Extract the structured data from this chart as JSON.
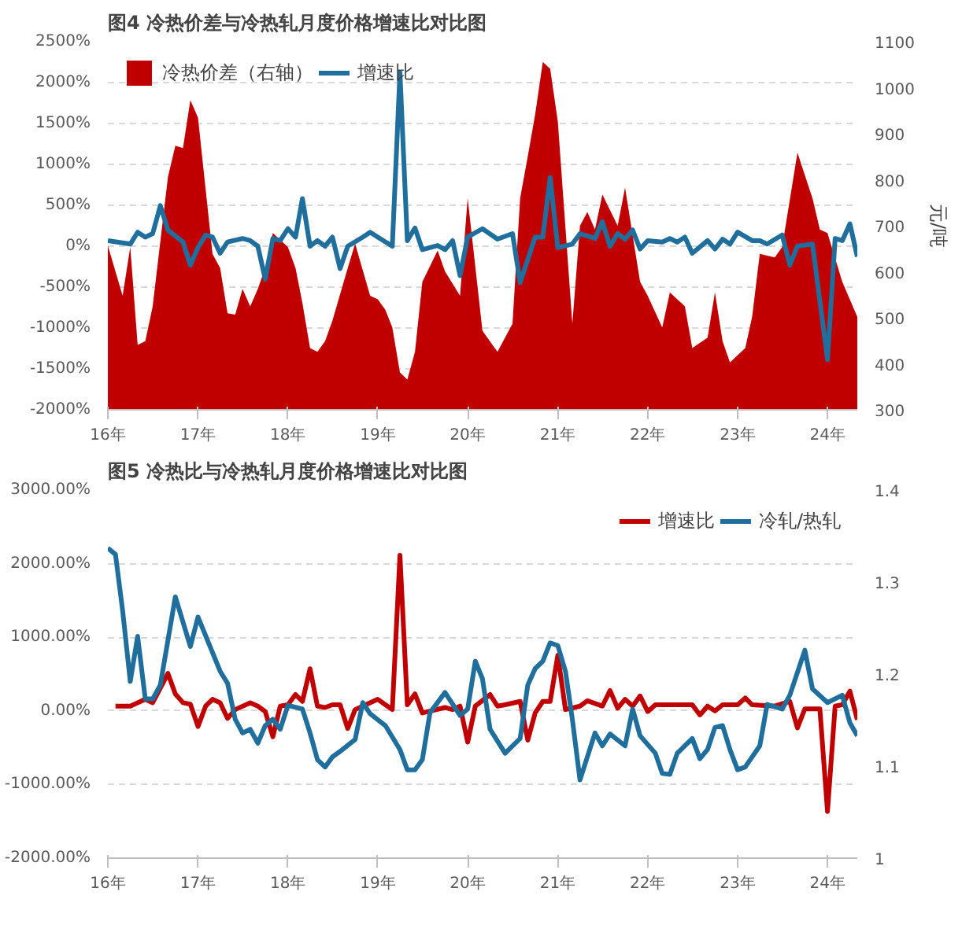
{
  "chart_data": [
    {
      "type": "line",
      "title": "图4 冷热价差与冷热轧月度价格增速比对比图",
      "y2label": "元/吨",
      "xlim": [
        "2016-01",
        "2024-05"
      ],
      "ylim": [
        -2000,
        2500
      ],
      "y2lim": [
        300,
        1100
      ],
      "xticks": [
        {
          "value": "2016-01",
          "label": "16年"
        },
        {
          "value": "2017-01",
          "label": "17年"
        },
        {
          "value": "2018-01",
          "label": "18年"
        },
        {
          "value": "2019-01",
          "label": "19年"
        },
        {
          "value": "2020-01",
          "label": "20年"
        },
        {
          "value": "2021-01",
          "label": "21年"
        },
        {
          "value": "2022-01",
          "label": "22年"
        },
        {
          "value": "2023-01",
          "label": "23年"
        },
        {
          "value": "2024-01",
          "label": "24年"
        }
      ],
      "yticks": [
        {
          "value": -2000,
          "label": "-2000%"
        },
        {
          "value": -1500,
          "label": "-1500%"
        },
        {
          "value": -1000,
          "label": "-1000%"
        },
        {
          "value": -500,
          "label": "-500%"
        },
        {
          "value": 0,
          "label": "0%"
        },
        {
          "value": 500,
          "label": "500%"
        },
        {
          "value": 1000,
          "label": "1000%"
        },
        {
          "value": 1500,
          "label": "1500%"
        },
        {
          "value": 2000,
          "label": "2000%"
        },
        {
          "value": 2500,
          "label": "2500%"
        }
      ],
      "y2ticks": [
        300,
        400,
        500,
        600,
        700,
        800,
        900,
        1000,
        1100
      ],
      "grid": "y",
      "legend": "top left",
      "series": [
        {
          "name": "冷热价差（右轴）",
          "type": "area",
          "axis": "y2",
          "color": "#c00000",
          "x": [
            "2016-01",
            "2016-03",
            "2016-04",
            "2016-05",
            "2016-06",
            "2016-07",
            "2016-09",
            "2016-10",
            "2016-11",
            "2016-12",
            "2017-01",
            "2017-03",
            "2017-04",
            "2017-05",
            "2017-06",
            "2017-07",
            "2017-08",
            "2017-09",
            "2017-10",
            "2017-11",
            "2018-01",
            "2018-02",
            "2018-03",
            "2018-04",
            "2018-05",
            "2018-06",
            "2018-07",
            "2018-09",
            "2018-10",
            "2018-12",
            "2019-01",
            "2019-02",
            "2019-03",
            "2019-04",
            "2019-05",
            "2019-06",
            "2019-07",
            "2019-09",
            "2019-10",
            "2019-12",
            "2020-01",
            "2020-03",
            "2020-05",
            "2020-07",
            "2020-08",
            "2020-09",
            "2020-10",
            "2020-11",
            "2020-12",
            "2021-01",
            "2021-03",
            "2021-04",
            "2021-05",
            "2021-06",
            "2021-07",
            "2021-09",
            "2021-10",
            "2021-12",
            "2022-01",
            "2022-03",
            "2022-04",
            "2022-06",
            "2022-07",
            "2022-09",
            "2022-10",
            "2022-11",
            "2022-12",
            "2023-02",
            "2023-03",
            "2023-04",
            "2023-06",
            "2023-07",
            "2023-09",
            "2023-11",
            "2023-12",
            "2024-01",
            "2024-03",
            "2024-05"
          ],
          "values": [
            657,
            548,
            654,
            441,
            449,
            525,
            806,
            874,
            869,
            973,
            935,
            639,
            608,
            510,
            507,
            563,
            525,
            563,
            608,
            684,
            654,
            608,
            532,
            434,
            426,
            449,
            494,
            608,
            661,
            548,
            540,
            517,
            479,
            381,
            366,
            426,
            578,
            646,
            601,
            548,
            760,
            472,
            426,
            487,
            760,
            851,
            942,
            1056,
            1041,
            927,
            487,
            700,
            730,
            692,
            768,
            700,
            783,
            578,
            548,
            479,
            555,
            525,
            434,
            457,
            555,
            449,
            403,
            434,
            502,
            639,
            631,
            654,
            859,
            760,
            692,
            684,
            578,
            502
          ]
        },
        {
          "name": "增速比",
          "type": "line",
          "color": "#1f6e9c",
          "x": [
            "2016-01",
            "2016-04",
            "2016-05",
            "2016-06",
            "2016-07",
            "2016-08",
            "2016-09",
            "2016-11",
            "2016-12",
            "2017-01",
            "2017-02",
            "2017-03",
            "2017-04",
            "2017-05",
            "2017-07",
            "2017-08",
            "2017-09",
            "2017-10",
            "2017-11",
            "2017-12",
            "2018-01",
            "2018-02",
            "2018-03",
            "2018-04",
            "2018-05",
            "2018-06",
            "2018-07",
            "2018-08",
            "2018-09",
            "2018-11",
            "2018-12",
            "2019-01",
            "2019-03",
            "2019-04",
            "2019-05",
            "2019-06",
            "2019-07",
            "2019-09",
            "2019-10",
            "2019-11",
            "2019-12",
            "2020-01",
            "2020-03",
            "2020-05",
            "2020-07",
            "2020-08",
            "2020-10",
            "2020-11",
            "2020-12",
            "2021-01",
            "2021-03",
            "2021-04",
            "2021-06",
            "2021-07",
            "2021-08",
            "2021-09",
            "2021-10",
            "2021-11",
            "2021-12",
            "2022-01",
            "2022-03",
            "2022-04",
            "2022-05",
            "2022-06",
            "2022-07",
            "2022-09",
            "2022-10",
            "2022-11",
            "2022-12",
            "2023-01",
            "2023-03",
            "2023-04",
            "2023-05",
            "2023-07",
            "2023-08",
            "2023-09",
            "2023-11",
            "2024-01",
            "2024-02",
            "2024-03",
            "2024-04",
            "2024-05"
          ],
          "values": [
            68,
            26,
            171,
            111,
            154,
            496,
            197,
            51,
            -231,
            -17,
            137,
            111,
            -86,
            51,
            94,
            68,
            0,
            -402,
            94,
            68,
            214,
            111,
            582,
            0,
            68,
            0,
            111,
            -274,
            0,
            111,
            171,
            111,
            0,
            2123,
            68,
            223,
            -43,
            9,
            -43,
            68,
            -360,
            111,
            214,
            86,
            154,
            -445,
            111,
            111,
            839,
            -17,
            26,
            154,
            94,
            300,
            0,
            154,
            86,
            197,
            -34,
            68,
            51,
            94,
            51,
            111,
            -86,
            68,
            -34,
            86,
            26,
            171,
            68,
            68,
            26,
            137,
            -231,
            0,
            26,
            -1387,
            94,
            68,
            274,
            -128
          ]
        }
      ]
    },
    {
      "type": "line",
      "title": "图5 冷热比与冷热轧月度价格增速比对比图",
      "xlim": [
        "2016-01",
        "2024-05"
      ],
      "ylim": [
        -2000,
        3000
      ],
      "y2lim": [
        1,
        1.4
      ],
      "xticks": [
        {
          "value": "2016-01",
          "label": "16年"
        },
        {
          "value": "2017-01",
          "label": "17年"
        },
        {
          "value": "2018-01",
          "label": "18年"
        },
        {
          "value": "2019-01",
          "label": "19年"
        },
        {
          "value": "2020-01",
          "label": "20年"
        },
        {
          "value": "2021-01",
          "label": "21年"
        },
        {
          "value": "2022-01",
          "label": "22年"
        },
        {
          "value": "2023-01",
          "label": "23年"
        },
        {
          "value": "2024-01",
          "label": "24年"
        }
      ],
      "yticks": [
        {
          "value": -2000,
          "label": "-2000.00%"
        },
        {
          "value": -1000,
          "label": "-1000.00%"
        },
        {
          "value": 0,
          "label": "0.00%"
        },
        {
          "value": 1000,
          "label": "1000.00%"
        },
        {
          "value": 2000,
          "label": "2000.00%"
        },
        {
          "value": 3000,
          "label": "3000.00%"
        }
      ],
      "y2ticks": [
        1,
        1.1,
        1.2,
        1.3,
        1.4
      ],
      "grid": "y",
      "legend": "top right",
      "series": [
        {
          "name": "增速比",
          "type": "line",
          "color": "#c00000",
          "x": [
            "2016-02",
            "2016-04",
            "2016-06",
            "2016-07",
            "2016-09",
            "2016-10",
            "2016-11",
            "2016-12",
            "2017-01",
            "2017-02",
            "2017-03",
            "2017-04",
            "2017-05",
            "2017-06",
            "2017-08",
            "2017-09",
            "2017-10",
            "2017-11",
            "2017-12",
            "2018-01",
            "2018-02",
            "2018-03",
            "2018-04",
            "2018-05",
            "2018-06",
            "2018-07",
            "2018-08",
            "2018-09",
            "2018-10",
            "2018-11",
            "2019-01",
            "2019-02",
            "2019-03",
            "2019-04",
            "2019-05",
            "2019-06",
            "2019-07",
            "2019-10",
            "2019-11",
            "2019-12",
            "2020-01",
            "2020-02",
            "2020-04",
            "2020-05",
            "2020-06",
            "2020-08",
            "2020-09",
            "2020-10",
            "2020-11",
            "2020-12",
            "2021-01",
            "2021-02",
            "2021-04",
            "2021-05",
            "2021-07",
            "2021-08",
            "2021-09",
            "2021-10",
            "2021-11",
            "2021-12",
            "2022-01",
            "2022-02",
            "2022-05",
            "2022-07",
            "2022-08",
            "2022-09",
            "2022-10",
            "2022-11",
            "2023-01",
            "2023-02",
            "2023-03",
            "2023-06",
            "2023-08",
            "2023-09",
            "2023-10",
            "2023-12",
            "2024-01",
            "2024-02",
            "2024-03",
            "2024-04",
            "2024-05"
          ],
          "values": [
            65,
            65,
            157,
            111,
            508,
            231,
            111,
            92,
            -212,
            65,
            157,
            111,
            -102,
            18,
            111,
            65,
            -9,
            -351,
            65,
            83,
            222,
            129,
            572,
            65,
            46,
            83,
            83,
            -240,
            18,
            65,
            157,
            83,
            18,
            2114,
            83,
            231,
            -28,
            46,
            18,
            65,
            -425,
            65,
            222,
            65,
            83,
            129,
            -397,
            -28,
            129,
            129,
            757,
            18,
            65,
            138,
            65,
            277,
            37,
            157,
            65,
            203,
            -9,
            83,
            83,
            83,
            -55,
            65,
            0,
            83,
            83,
            175,
            83,
            65,
            129,
            -231,
            28,
            28,
            -1366,
            65,
            83,
            268,
            -120
          ]
        },
        {
          "name": "冷轧/热轧",
          "type": "line",
          "axis": "y2",
          "color": "#1f6e9c",
          "x": [
            "2016-01",
            "2016-02",
            "2016-03",
            "2016-04",
            "2016-05",
            "2016-06",
            "2016-07",
            "2016-08",
            "2016-10",
            "2016-12",
            "2017-01",
            "2017-04",
            "2017-05",
            "2017-06",
            "2017-07",
            "2017-08",
            "2017-09",
            "2017-10",
            "2017-11",
            "2017-12",
            "2018-01",
            "2018-03",
            "2018-04",
            "2018-05",
            "2018-06",
            "2018-07",
            "2018-08",
            "2018-10",
            "2018-11",
            "2018-12",
            "2019-02",
            "2019-04",
            "2019-05",
            "2019-06",
            "2019-07",
            "2019-08",
            "2019-10",
            "2019-12",
            "2020-01",
            "2020-02",
            "2020-03",
            "2020-04",
            "2020-06",
            "2020-08",
            "2020-09",
            "2020-10",
            "2020-11",
            "2020-12",
            "2021-01",
            "2021-02",
            "2021-03",
            "2021-04",
            "2021-06",
            "2021-07",
            "2021-08",
            "2021-10",
            "2021-11",
            "2021-12",
            "2022-02",
            "2022-03",
            "2022-04",
            "2022-05",
            "2022-07",
            "2022-08",
            "2022-09",
            "2022-10",
            "2022-11",
            "2022-12",
            "2023-01",
            "2023-02",
            "2023-04",
            "2023-05",
            "2023-07",
            "2023-08",
            "2023-10",
            "2023-11",
            "2024-01",
            "2024-03",
            "2024-04",
            "2024-05"
          ],
          "values": [
            1.337,
            1.33,
            1.269,
            1.192,
            1.241,
            1.173,
            1.173,
            1.188,
            1.284,
            1.23,
            1.262,
            1.203,
            1.19,
            1.151,
            1.136,
            1.14,
            1.125,
            1.144,
            1.151,
            1.14,
            1.166,
            1.162,
            1.136,
            1.107,
            1.099,
            1.11,
            1.116,
            1.129,
            1.169,
            1.157,
            1.144,
            1.118,
            1.096,
            1.096,
            1.107,
            1.158,
            1.18,
            1.155,
            1.162,
            1.214,
            1.195,
            1.14,
            1.114,
            1.13,
            1.188,
            1.206,
            1.214,
            1.234,
            1.231,
            1.203,
            1.151,
            1.085,
            1.136,
            1.122,
            1.135,
            1.122,
            1.162,
            1.133,
            1.114,
            1.092,
            1.091,
            1.114,
            1.13,
            1.108,
            1.118,
            1.142,
            1.144,
            1.118,
            1.096,
            1.099,
            1.122,
            1.167,
            1.162,
            1.177,
            1.226,
            1.184,
            1.169,
            1.177,
            1.147,
            1.133
          ]
        }
      ]
    }
  ]
}
